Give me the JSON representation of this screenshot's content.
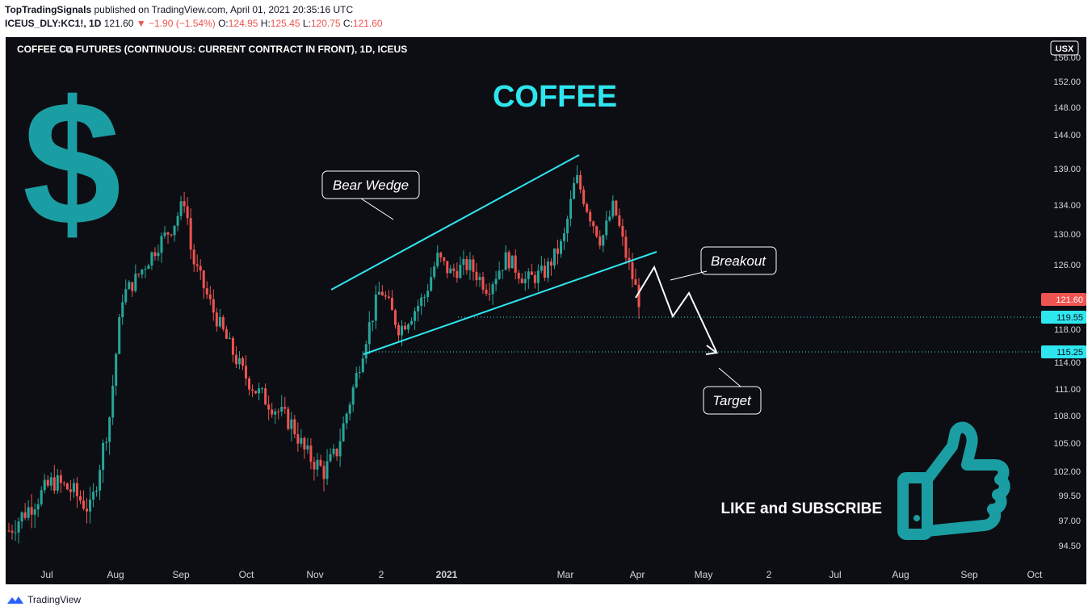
{
  "header": {
    "publisher": "TopTradingSignals",
    "published_text": "published on TradingView.com, April 01, 2021 20:35:16 UTC",
    "symbol": "ICEUS_DLY:KC1!, 1D",
    "last": "121.60",
    "change": "−1.90 (−1.54%)",
    "o_label": "O:",
    "o": "124.95",
    "h_label": "H:",
    "h": "125.45",
    "l_label": "L:",
    "l": "120.75",
    "c_label": "C:",
    "c": "121.60"
  },
  "chart_title": "COFFEE C⧉ FUTURES (CONTINUOUS: CURRENT CONTRACT IN FRONT), 1D, ICEUS",
  "currency": "USX",
  "footer_brand": "TradingView",
  "annotations": {
    "big_title": "COFFEE",
    "bear_wedge": "Bear Wedge",
    "breakout": "Breakout",
    "target": "Target",
    "like": "LIKE and SUBSCRIBE",
    "dollar": "$"
  },
  "colors": {
    "background": "#0d0e13",
    "up": "#26a69a",
    "down": "#ef5350",
    "wedge": "#2ee6f0",
    "accent": "#1a9ea3"
  },
  "chart_data": {
    "type": "candlestick",
    "price_axis": [
      "156.00",
      "152.00",
      "148.00",
      "144.00",
      "139.00",
      "134.00",
      "130.00",
      "126.00",
      "118.00",
      "114.00",
      "111.00",
      "108.00",
      "105.00",
      "102.00",
      "99.50",
      "97.00",
      "94.50"
    ],
    "time_axis": [
      "Jul",
      "Aug",
      "Sep",
      "Oct",
      "Nov",
      "2",
      "2021",
      "Mar",
      "Apr",
      "May",
      "2",
      "Jul",
      "Aug",
      "Sep",
      "Oct"
    ],
    "price_labels": [
      {
        "value": "121.60",
        "kind": "last"
      },
      {
        "value": "119.55",
        "kind": "level"
      },
      {
        "value": "115.25",
        "kind": "level"
      }
    ],
    "path_points": [
      [
        0,
        96
      ],
      [
        0.07,
        101
      ],
      [
        0.1,
        100
      ],
      [
        0.13,
        98
      ],
      [
        0.16,
        108
      ],
      [
        0.18,
        122
      ],
      [
        0.2,
        124
      ],
      [
        0.24,
        129
      ],
      [
        0.26,
        131
      ],
      [
        0.28,
        135
      ],
      [
        0.29,
        127
      ],
      [
        0.32,
        121
      ],
      [
        0.35,
        116
      ],
      [
        0.37,
        113
      ],
      [
        0.39,
        111
      ],
      [
        0.42,
        109
      ],
      [
        0.45,
        107
      ],
      [
        0.47,
        104
      ],
      [
        0.5,
        102
      ],
      [
        0.52,
        104
      ],
      [
        0.55,
        112
      ],
      [
        0.57,
        118
      ],
      [
        0.59,
        123
      ],
      [
        0.62,
        118
      ],
      [
        0.66,
        122
      ],
      [
        0.68,
        127
      ],
      [
        0.7,
        125
      ],
      [
        0.73,
        126
      ],
      [
        0.76,
        123
      ],
      [
        0.79,
        127
      ],
      [
        0.82,
        124
      ],
      [
        0.85,
        125
      ],
      [
        0.88,
        129
      ],
      [
        0.9,
        138
      ],
      [
        0.92,
        133
      ],
      [
        0.94,
        129
      ],
      [
        0.96,
        134
      ],
      [
        0.98,
        127
      ],
      [
        1,
        121.6
      ]
    ]
  }
}
